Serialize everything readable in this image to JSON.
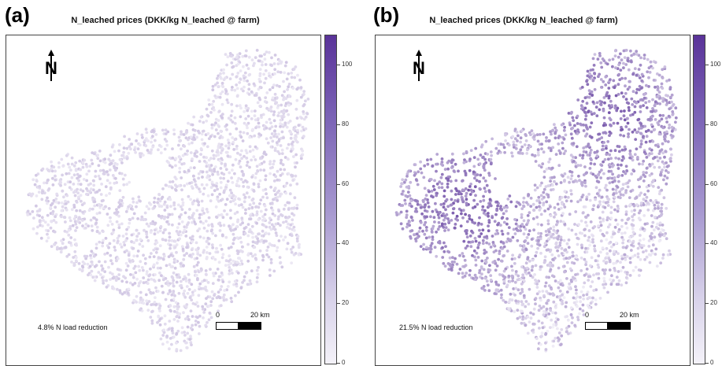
{
  "panels": [
    {
      "letter": "(a)",
      "title": "N_leached prices (DKK/kg N_leached @ farm)",
      "reduction_label": "4.8% N load reduction",
      "intensity": 0.15
    },
    {
      "letter": "(b)",
      "title": "N_leached prices (DKK/kg N_leached @ farm)",
      "reduction_label": "21.5% N load reduction",
      "intensity": 0.75
    }
  ],
  "colorbar": {
    "ticks": [
      "0",
      "20",
      "40",
      "60",
      "80",
      "100"
    ],
    "range": [
      0,
      110
    ],
    "colors": {
      "low": "#f4f2f9",
      "high": "#5a3399"
    }
  },
  "scalebar": {
    "start_label": "0",
    "end_label": "20 km"
  },
  "north_arrow": {
    "letter": "N",
    "icon": "north-arrow-icon"
  }
}
